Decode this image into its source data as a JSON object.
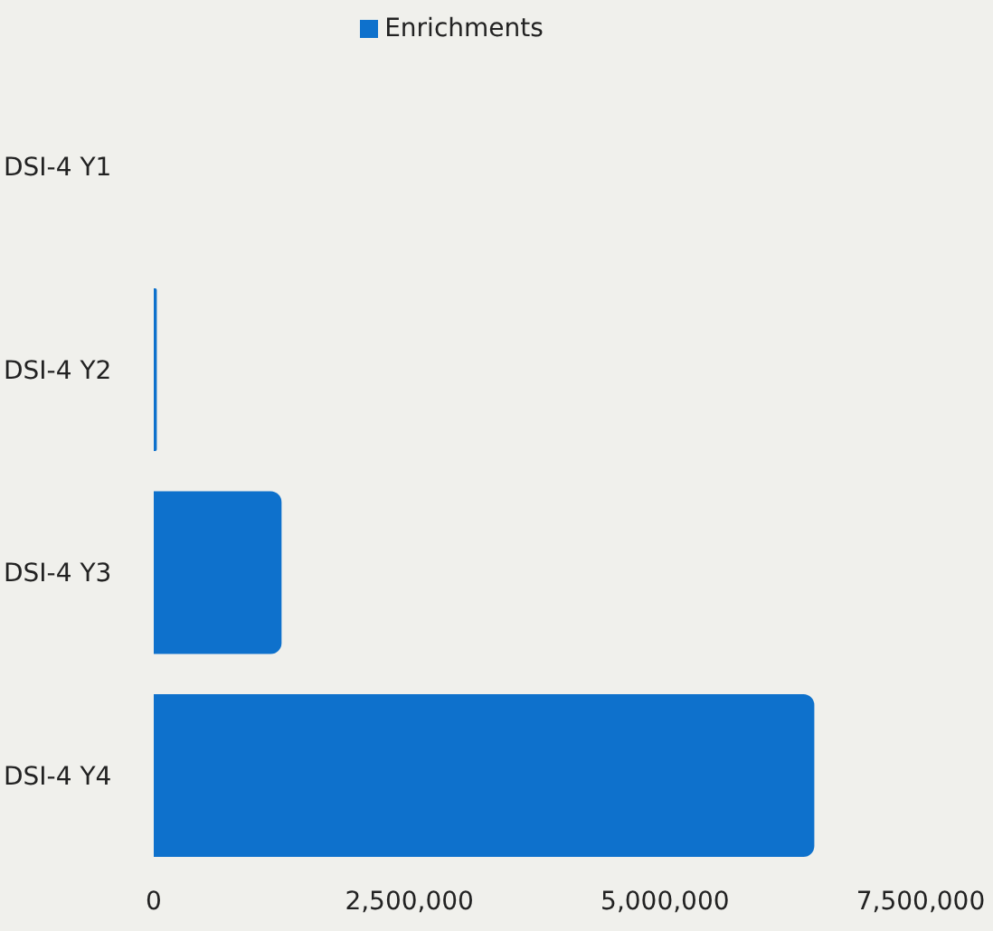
{
  "chart_data": {
    "type": "bar",
    "orientation": "horizontal",
    "categories": [
      "DSI-4 Y1",
      "DSI-4 Y2",
      "DSI-4 Y3",
      "DSI-4 Y4"
    ],
    "series": [
      {
        "name": "Enrichments",
        "color": "#0e71cc",
        "values": [
          0,
          30000,
          1250000,
          6460000
        ]
      }
    ],
    "xlim": [
      0,
      7500000
    ],
    "xticks": [
      {
        "value": 0,
        "label": "0"
      },
      {
        "value": 2500000,
        "label": "2,500,000"
      },
      {
        "value": 5000000,
        "label": "5,000,000"
      },
      {
        "value": 7500000,
        "label": "7,500,000"
      }
    ],
    "grid": false,
    "legend": "top"
  }
}
